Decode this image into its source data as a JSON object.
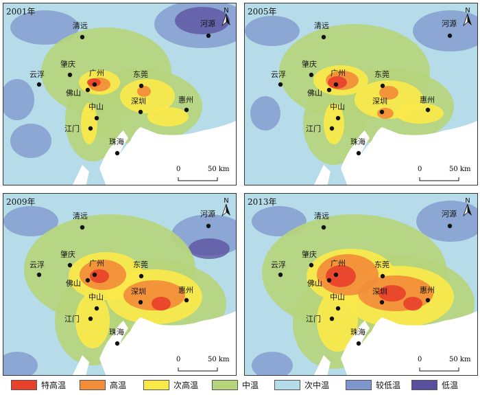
{
  "panels": [
    {
      "year": "2001年",
      "cities": [
        "清远",
        "河源",
        "云浮",
        "肇庆",
        "广州",
        "佛山",
        "东莞",
        "惠州",
        "中山",
        "深圳",
        "江门",
        "珠海"
      ]
    },
    {
      "year": "2005年",
      "cities": [
        "清远",
        "河源",
        "云浮",
        "肇庆",
        "广州",
        "佛山",
        "东莞",
        "惠州",
        "中山",
        "深圳",
        "江门",
        "珠海"
      ]
    },
    {
      "year": "2009年",
      "cities": [
        "清远",
        "河源",
        "云浮",
        "肇庆",
        "广州",
        "佛山",
        "东莞",
        "惠州",
        "中山",
        "深圳",
        "江门",
        "珠海"
      ]
    },
    {
      "year": "2013年",
      "cities": [
        "清远",
        "河源",
        "云浮",
        "肇庆",
        "广州",
        "佛山",
        "东莞",
        "惠州",
        "中山",
        "深圳",
        "江门",
        "珠海"
      ]
    }
  ],
  "north_label": "N",
  "scale": {
    "zero": "0",
    "distance": "50 km"
  },
  "legend": [
    {
      "label": "特高温",
      "color": "#e8412b"
    },
    {
      "label": "高温",
      "color": "#f28d3a"
    },
    {
      "label": "次高温",
      "color": "#fbe84a"
    },
    {
      "label": "中温",
      "color": "#b6d47c"
    },
    {
      "label": "次中温",
      "color": "#b5dce8"
    },
    {
      "label": "较低温",
      "color": "#7f96cc"
    },
    {
      "label": "低温",
      "color": "#5a4f9f"
    }
  ]
}
